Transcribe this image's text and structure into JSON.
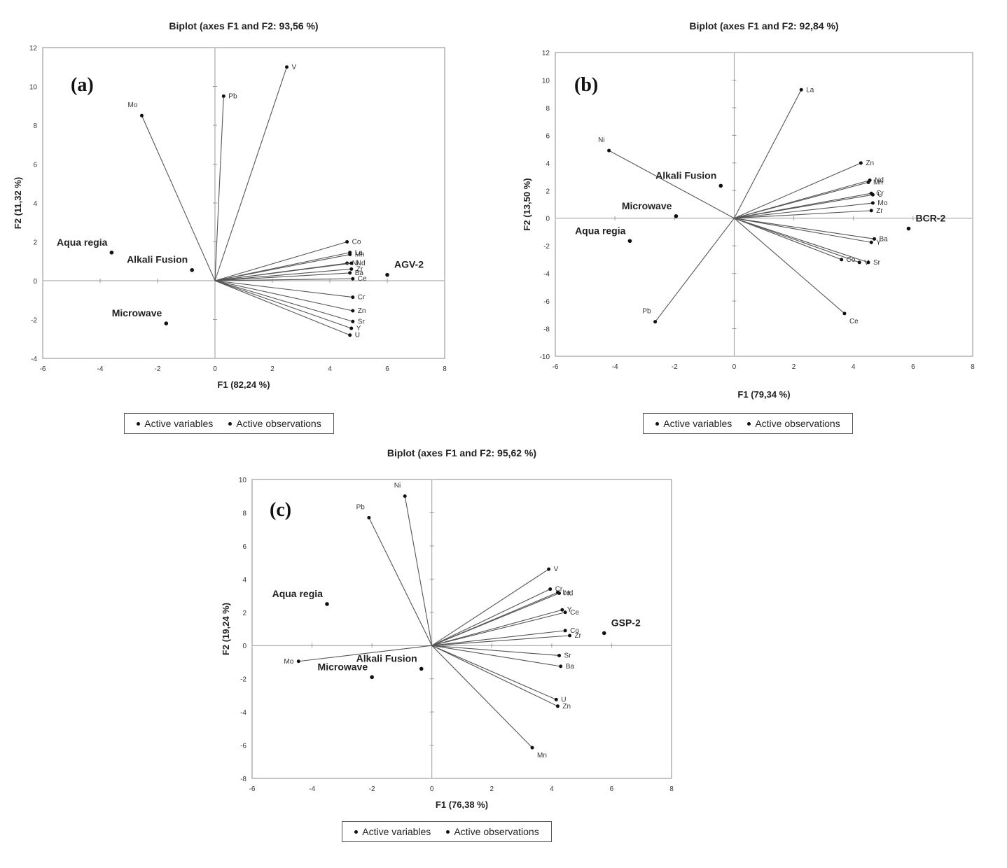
{
  "chart_data": [
    {
      "panel": "(a)",
      "type": "scatter",
      "title": "Biplot (axes F1 and F2: 93,56 %)",
      "xlabel": "F1 (82,24 %)",
      "ylabel": "F2 (11,32 %)",
      "xlim": [
        -6,
        8
      ],
      "ylim": [
        -4,
        12
      ],
      "xticks": [
        "-6",
        "-4",
        "-2",
        "0",
        "2",
        "4",
        "6",
        "8"
      ],
      "yticks": [
        "-4",
        "-2",
        "0",
        "2",
        "4",
        "6",
        "8",
        "10",
        "12"
      ],
      "legend": [
        "Active variables",
        "Active observations"
      ],
      "variables": [
        {
          "name": "V",
          "x": 2.5,
          "y": 11.0
        },
        {
          "name": "Pb",
          "x": 0.3,
          "y": 9.5
        },
        {
          "name": "Mo",
          "x": -2.55,
          "y": 8.5
        },
        {
          "name": "Co",
          "x": 4.6,
          "y": 2.0
        },
        {
          "name": "La",
          "x": 4.7,
          "y": 1.45
        },
        {
          "name": "Mn",
          "x": 4.7,
          "y": 1.35
        },
        {
          "name": "Ni",
          "x": 4.6,
          "y": 0.9
        },
        {
          "name": "Nd",
          "x": 4.75,
          "y": 0.9
        },
        {
          "name": "Zr",
          "x": 4.75,
          "y": 0.6
        },
        {
          "name": "Ba",
          "x": 4.7,
          "y": 0.4
        },
        {
          "name": "Ce",
          "x": 4.8,
          "y": 0.1
        },
        {
          "name": "Cr",
          "x": 4.8,
          "y": -0.85
        },
        {
          "name": "Zn",
          "x": 4.8,
          "y": -1.55
        },
        {
          "name": "Sr",
          "x": 4.8,
          "y": -2.1
        },
        {
          "name": "Y",
          "x": 4.75,
          "y": -2.45
        },
        {
          "name": "U",
          "x": 4.7,
          "y": -2.8
        }
      ],
      "observations": [
        {
          "name": "Aqua regia",
          "x": -3.6,
          "y": 1.45
        },
        {
          "name": "Alkali Fusion",
          "x": -0.8,
          "y": 0.55
        },
        {
          "name": "Microwave",
          "x": -1.7,
          "y": -2.2
        },
        {
          "name": "AGV-2",
          "x": 6.0,
          "y": 0.3
        }
      ]
    },
    {
      "panel": "(b)",
      "type": "scatter",
      "title": "Biplot (axes F1 and F2: 92,84 %)",
      "xlabel": "F1 (79,34 %)",
      "ylabel": "F2 (13,50 %)",
      "xlim": [
        -6,
        8
      ],
      "ylim": [
        -10,
        12
      ],
      "xticks": [
        "-6",
        "-4",
        "-2",
        "0",
        "2",
        "4",
        "6",
        "8"
      ],
      "yticks": [
        "-10",
        "-8",
        "-6",
        "-4",
        "-2",
        "0",
        "2",
        "4",
        "6",
        "8",
        "10",
        "12"
      ],
      "legend": [
        "Active variables",
        "Active observations"
      ],
      "variables": [
        {
          "name": "La",
          "x": 2.25,
          "y": 9.3
        },
        {
          "name": "Ni",
          "x": -4.2,
          "y": 4.9
        },
        {
          "name": "Zn",
          "x": 4.25,
          "y": 4.0
        },
        {
          "name": "Mn",
          "x": 4.5,
          "y": 2.6
        },
        {
          "name": "Nd",
          "x": 4.55,
          "y": 2.75
        },
        {
          "name": "Cr",
          "x": 4.6,
          "y": 1.8
        },
        {
          "name": "U",
          "x": 4.65,
          "y": 1.7
        },
        {
          "name": "Mo",
          "x": 4.65,
          "y": 1.1
        },
        {
          "name": "Zr",
          "x": 4.6,
          "y": 0.55
        },
        {
          "name": "Y",
          "x": 4.6,
          "y": -1.75
        },
        {
          "name": "Ba",
          "x": 4.7,
          "y": -1.5
        },
        {
          "name": "Co",
          "x": 3.6,
          "y": -3.0
        },
        {
          "name": "V",
          "x": 4.2,
          "y": -3.2
        },
        {
          "name": "Sr",
          "x": 4.5,
          "y": -3.2
        },
        {
          "name": "Ce",
          "x": 3.7,
          "y": -6.9
        },
        {
          "name": "Pb",
          "x": -2.65,
          "y": -7.5
        }
      ],
      "observations": [
        {
          "name": "Alkali Fusion",
          "x": -0.45,
          "y": 2.35
        },
        {
          "name": "Microwave",
          "x": -1.95,
          "y": 0.15
        },
        {
          "name": "Aqua regia",
          "x": -3.5,
          "y": -1.65
        },
        {
          "name": "BCR-2",
          "x": 5.85,
          "y": -0.75
        }
      ]
    },
    {
      "panel": "(c)",
      "type": "scatter",
      "title": "Biplot (axes F1 and F2: 95,62 %)",
      "xlabel": "F1 (76,38 %)",
      "ylabel": "F2 (19,24 %)",
      "xlim": [
        -6,
        8
      ],
      "ylim": [
        -8,
        10
      ],
      "xticks": [
        "-6",
        "-4",
        "-2",
        "0",
        "2",
        "4",
        "6",
        "8"
      ],
      "yticks": [
        "-8",
        "-6",
        "-4",
        "-2",
        "0",
        "2",
        "4",
        "6",
        "8",
        "10"
      ],
      "legend": [
        "Active variables",
        "Active observations"
      ],
      "variables": [
        {
          "name": "Ni",
          "x": -0.9,
          "y": 9.0
        },
        {
          "name": "Pb",
          "x": -2.1,
          "y": 7.7
        },
        {
          "name": "Mo",
          "x": -4.45,
          "y": -0.95
        },
        {
          "name": "V",
          "x": 3.9,
          "y": 4.6
        },
        {
          "name": "Cr",
          "x": 3.95,
          "y": 3.4
        },
        {
          "name": "La",
          "x": 4.2,
          "y": 3.2
        },
        {
          "name": "Nd",
          "x": 4.25,
          "y": 3.15
        },
        {
          "name": "Y",
          "x": 4.35,
          "y": 2.15
        },
        {
          "name": "Ce",
          "x": 4.45,
          "y": 2.0
        },
        {
          "name": "Co",
          "x": 4.45,
          "y": 0.9
        },
        {
          "name": "Zr",
          "x": 4.6,
          "y": 0.6
        },
        {
          "name": "Sr",
          "x": 4.25,
          "y": -0.6
        },
        {
          "name": "Ba",
          "x": 4.3,
          "y": -1.25
        },
        {
          "name": "U",
          "x": 4.15,
          "y": -3.25
        },
        {
          "name": "Zn",
          "x": 4.2,
          "y": -3.65
        },
        {
          "name": "Mn",
          "x": 3.35,
          "y": -6.15
        }
      ],
      "observations": [
        {
          "name": "Aqua regia",
          "x": -3.5,
          "y": 2.5
        },
        {
          "name": "Microwave",
          "x": -2.0,
          "y": -1.9
        },
        {
          "name": "Alkali Fusion",
          "x": -0.35,
          "y": -1.4
        },
        {
          "name": "GSP-2",
          "x": 5.75,
          "y": 0.75
        }
      ]
    }
  ]
}
